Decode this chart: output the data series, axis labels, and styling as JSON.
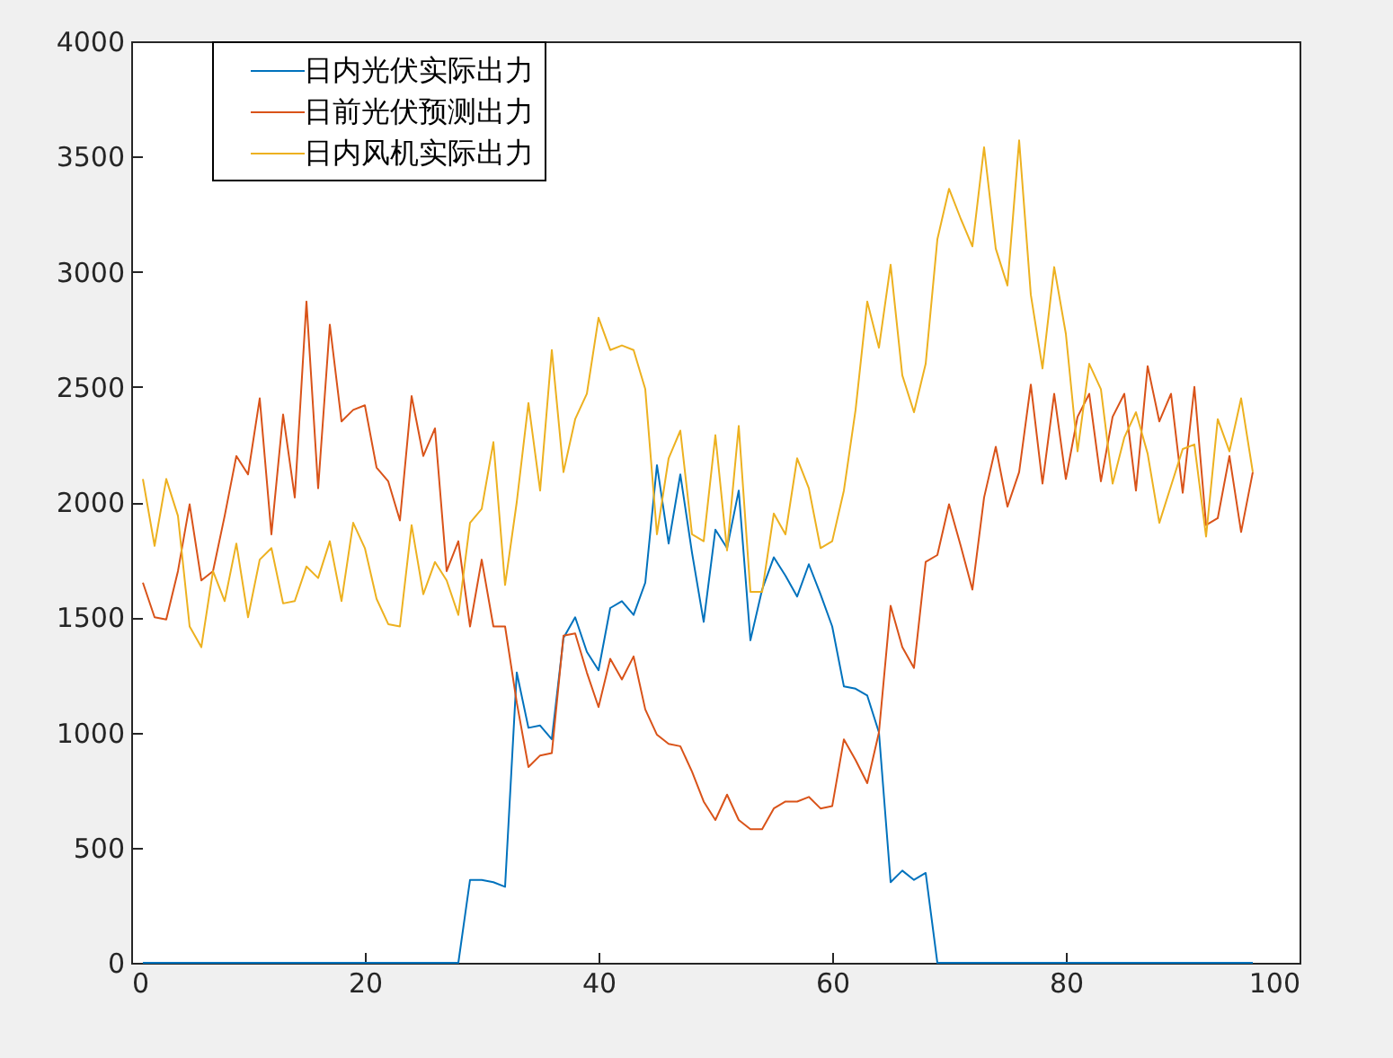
{
  "chart_data": {
    "type": "line",
    "x": [
      1,
      2,
      3,
      4,
      5,
      6,
      7,
      8,
      9,
      10,
      11,
      12,
      13,
      14,
      15,
      16,
      17,
      18,
      19,
      20,
      21,
      22,
      23,
      24,
      25,
      26,
      27,
      28,
      29,
      30,
      31,
      32,
      33,
      34,
      35,
      36,
      37,
      38,
      39,
      40,
      41,
      42,
      43,
      44,
      45,
      46,
      47,
      48,
      49,
      50,
      51,
      52,
      53,
      54,
      55,
      56,
      57,
      58,
      59,
      60,
      61,
      62,
      63,
      64,
      65,
      66,
      67,
      68,
      69,
      70,
      71,
      72,
      73,
      74,
      75,
      76,
      77,
      78,
      79,
      80,
      81,
      82,
      83,
      84,
      85,
      86,
      87,
      88,
      89,
      90,
      91,
      92,
      93,
      94,
      95,
      96
    ],
    "series": [
      {
        "name": "日内光伏实际出力",
        "color": "#0072bd",
        "values": [
          0,
          0,
          0,
          0,
          0,
          0,
          0,
          0,
          0,
          0,
          0,
          0,
          0,
          0,
          0,
          0,
          0,
          0,
          0,
          0,
          0,
          0,
          0,
          0,
          0,
          0,
          0,
          0,
          360,
          360,
          350,
          330,
          1260,
          1020,
          1030,
          970,
          1410,
          1500,
          1350,
          1270,
          1540,
          1570,
          1510,
          1650,
          2160,
          1820,
          2120,
          1780,
          1480,
          1880,
          1800,
          2050,
          1400,
          1620,
          1760,
          1680,
          1590,
          1730,
          1600,
          1460,
          1200,
          1190,
          1160,
          1000,
          350,
          400,
          360,
          390,
          0,
          0,
          0,
          0,
          0,
          0,
          0,
          0,
          0,
          0,
          0,
          0,
          0,
          0,
          0,
          0,
          0,
          0,
          0,
          0,
          0,
          0,
          0,
          0,
          0,
          0,
          0,
          0
        ]
      },
      {
        "name": "日前光伏预测出力",
        "color": "#d95319",
        "values": [
          1650,
          1500,
          1490,
          1700,
          1990,
          1660,
          1700,
          1940,
          2200,
          2120,
          2450,
          1860,
          2380,
          2020,
          2870,
          2060,
          2770,
          2350,
          2400,
          2420,
          2150,
          2090,
          1920,
          2460,
          2200,
          2320,
          1700,
          1830,
          1460,
          1750,
          1460,
          1460,
          1130,
          850,
          900,
          910,
          1420,
          1430,
          1260,
          1110,
          1320,
          1230,
          1330,
          1100,
          990,
          950,
          940,
          830,
          700,
          620,
          730,
          620,
          580,
          580,
          670,
          700,
          700,
          720,
          670,
          680,
          970,
          880,
          780,
          1000,
          1550,
          1370,
          1280,
          1740,
          1770,
          1990,
          1810,
          1620,
          2020,
          2240,
          1980,
          2130,
          2510,
          2080,
          2470,
          2100,
          2370,
          2470,
          2090,
          2370,
          2470,
          2050,
          2590,
          2350,
          2470,
          2040,
          2500,
          1900,
          1930,
          2200,
          1870,
          2130
        ]
      },
      {
        "name": "日内风机实际出力",
        "color": "#edb120",
        "values": [
          2100,
          1810,
          2100,
          1940,
          1460,
          1370,
          1700,
          1570,
          1820,
          1500,
          1750,
          1800,
          1560,
          1570,
          1720,
          1670,
          1830,
          1570,
          1910,
          1800,
          1580,
          1470,
          1460,
          1900,
          1600,
          1740,
          1660,
          1510,
          1910,
          1970,
          2260,
          1640,
          2000,
          2430,
          2050,
          2660,
          2130,
          2360,
          2470,
          2800,
          2660,
          2680,
          2660,
          2490,
          1860,
          2190,
          2310,
          1860,
          1830,
          2290,
          1790,
          2330,
          1610,
          1610,
          1950,
          1860,
          2190,
          2060,
          1800,
          1830,
          2050,
          2400,
          2870,
          2670,
          3030,
          2550,
          2390,
          2600,
          3140,
          3360,
          3230,
          3110,
          3540,
          3100,
          2940,
          3570,
          2900,
          2580,
          3020,
          2730,
          2220,
          2600,
          2490,
          2080,
          2280,
          2390,
          2210,
          1910,
          2070,
          2230,
          2250,
          1850,
          2360,
          2220,
          2450,
          2130
        ]
      }
    ],
    "xlim": [
      0,
      100
    ],
    "xticks": [
      0,
      20,
      40,
      60,
      80,
      100
    ],
    "ylim": [
      0,
      4000
    ],
    "yticks": [
      0,
      500,
      1000,
      1500,
      2000,
      2500,
      3000,
      3500,
      4000
    ],
    "legend": "top left",
    "line_style": "solid"
  }
}
